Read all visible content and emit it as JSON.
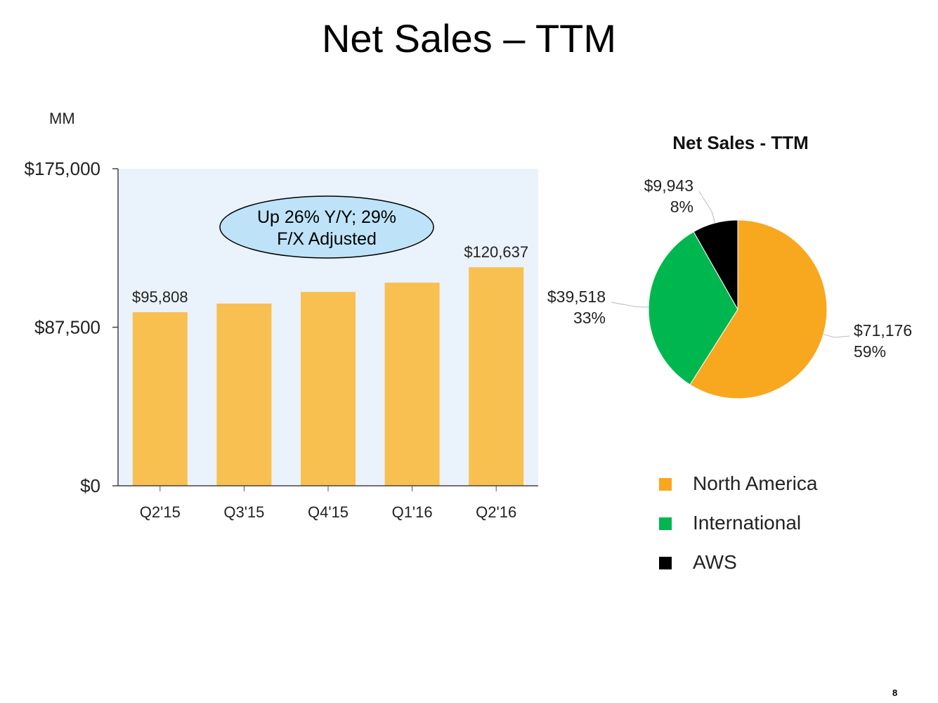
{
  "slide": {
    "title": "Net Sales – TTM",
    "unit": "MM",
    "page_number": "8"
  },
  "colors": {
    "bar": "#F8C050",
    "plot_background": "#EAF2FC",
    "callout_fill": "#BEE3F8",
    "north_america": "#F7A81E",
    "international": "#00B74F",
    "aws": "#000000"
  },
  "chart_data": [
    {
      "type": "bar",
      "categories": [
        "Q2'15",
        "Q3'15",
        "Q4'15",
        "Q1'16",
        "Q2'16"
      ],
      "values": [
        95808,
        100582,
        107006,
        112114,
        120637
      ],
      "ylim": [
        0,
        175000
      ],
      "yticks": [
        0,
        87500,
        175000
      ],
      "ytick_labels": [
        "$0",
        "$87,500",
        "$175,000"
      ],
      "data_labels": [
        {
          "index": 0,
          "text": "$95,808"
        },
        {
          "index": 4,
          "text": "$120,637"
        }
      ],
      "annotation": {
        "line1": "Up 26% Y/Y; 29%",
        "line2": "F/X Adjusted"
      },
      "grid": false
    },
    {
      "type": "pie",
      "title": "Net Sales - TTM",
      "slices": [
        {
          "name": "North America",
          "value": 71176,
          "value_label": "$71,176",
          "percent_label": "59%",
          "color": "#F7A81E"
        },
        {
          "name": "International",
          "value": 39518,
          "value_label": "$39,518",
          "percent_label": "33%",
          "color": "#00B74F"
        },
        {
          "name": "AWS",
          "value": 9943,
          "value_label": "$9,943",
          "percent_label": "8%",
          "color": "#000000"
        }
      ],
      "legend_position": "bottom"
    }
  ]
}
